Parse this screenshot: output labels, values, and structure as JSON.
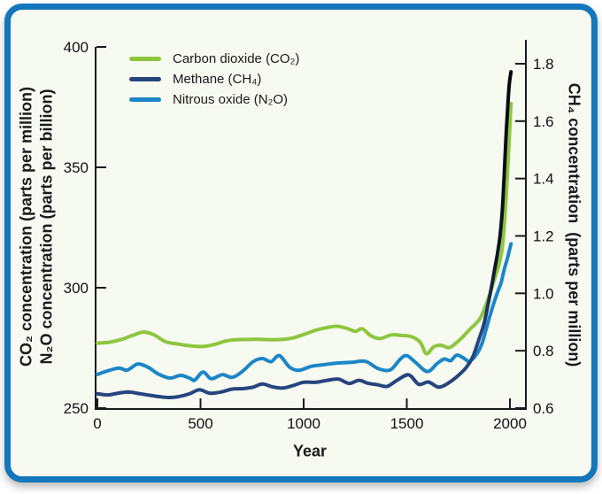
{
  "window": {
    "background_color": "#f7faf0",
    "border_color": "#1477bd"
  },
  "legend": {
    "items": [
      {
        "label": "Carbon dioxide (CO₂)",
        "series_id": "co2"
      },
      {
        "label": "Methane (CH₄)",
        "series_id": "ch4"
      },
      {
        "label": "Nitrous oxide (N₂O)",
        "series_id": "n2o"
      }
    ]
  },
  "chart_data": {
    "type": "line",
    "grid": false,
    "legend_position": "top-left",
    "x_axis": {
      "label": "Year",
      "ticks": [
        0,
        500,
        1000,
        1500,
        2000
      ],
      "range": [
        0,
        2085
      ]
    },
    "y_axis_left": {
      "labels": [
        "CO₂ concentration (parts per million)",
        "N₂O concentration (parts per billion)"
      ],
      "ticks": [
        250,
        300,
        350,
        400
      ],
      "range": [
        250,
        400
      ]
    },
    "y_axis_right": {
      "label": "CH₄ concentration  (parts per million)",
      "ticks": [
        0.6,
        0.8,
        1.0,
        1.2,
        1.4,
        1.6,
        1.8
      ],
      "range": [
        0.6,
        1.8
      ]
    },
    "series": [
      {
        "id": "co2",
        "name": "Carbon dioxide (CO₂)",
        "axis": "left",
        "unit": "ppm",
        "color": "#8dc63f",
        "points": [
          [
            0,
            277
          ],
          [
            60,
            277.4
          ],
          [
            120,
            278.6
          ],
          [
            170,
            280.2
          ],
          [
            225,
            281.6
          ],
          [
            275,
            280.4
          ],
          [
            330,
            277.6
          ],
          [
            390,
            276.6
          ],
          [
            450,
            275.9
          ],
          [
            510,
            275.6
          ],
          [
            570,
            276.5
          ],
          [
            630,
            278
          ],
          [
            700,
            278.5
          ],
          [
            780,
            278.6
          ],
          [
            860,
            278.4
          ],
          [
            940,
            279
          ],
          [
            1000,
            280.6
          ],
          [
            1060,
            282.4
          ],
          [
            1110,
            283.4
          ],
          [
            1160,
            284
          ],
          [
            1210,
            283.1
          ],
          [
            1250,
            281.9
          ],
          [
            1285,
            282.9
          ],
          [
            1325,
            280.1
          ],
          [
            1370,
            278.9
          ],
          [
            1425,
            280.4
          ],
          [
            1475,
            280.2
          ],
          [
            1525,
            279.6
          ],
          [
            1565,
            277.4
          ],
          [
            1595,
            272.6
          ],
          [
            1630,
            275.4
          ],
          [
            1665,
            276.1
          ],
          [
            1705,
            275.1
          ],
          [
            1740,
            277.1
          ],
          [
            1775,
            279.9
          ],
          [
            1805,
            282.7
          ],
          [
            1830,
            284.7
          ],
          [
            1855,
            287.2
          ],
          [
            1880,
            292
          ],
          [
            1905,
            298
          ],
          [
            1925,
            303.5
          ],
          [
            1945,
            309
          ],
          [
            1960,
            315
          ],
          [
            1970,
            323
          ],
          [
            1980,
            335
          ],
          [
            1988,
            348
          ],
          [
            1995,
            359
          ],
          [
            2005,
            376.5
          ]
        ]
      },
      {
        "id": "ch4",
        "name": "Methane (CH₄)",
        "axis": "right",
        "unit": "ppm",
        "color": "#26457e",
        "top_color": "#070707",
        "points": [
          [
            0,
            0.65
          ],
          [
            50,
            0.646
          ],
          [
            100,
            0.652
          ],
          [
            150,
            0.656
          ],
          [
            200,
            0.651
          ],
          [
            250,
            0.645
          ],
          [
            300,
            0.64
          ],
          [
            350,
            0.637
          ],
          [
            400,
            0.641
          ],
          [
            450,
            0.651
          ],
          [
            495,
            0.664
          ],
          [
            545,
            0.652
          ],
          [
            600,
            0.656
          ],
          [
            650,
            0.666
          ],
          [
            705,
            0.668
          ],
          [
            755,
            0.673
          ],
          [
            800,
            0.684
          ],
          [
            850,
            0.674
          ],
          [
            900,
            0.67
          ],
          [
            950,
            0.679
          ],
          [
            1000,
            0.69
          ],
          [
            1060,
            0.69
          ],
          [
            1115,
            0.697
          ],
          [
            1170,
            0.701
          ],
          [
            1220,
            0.686
          ],
          [
            1268,
            0.697
          ],
          [
            1310,
            0.687
          ],
          [
            1360,
            0.681
          ],
          [
            1405,
            0.676
          ],
          [
            1455,
            0.698
          ],
          [
            1510,
            0.716
          ],
          [
            1558,
            0.683
          ],
          [
            1605,
            0.691
          ],
          [
            1655,
            0.673
          ],
          [
            1705,
            0.689
          ],
          [
            1750,
            0.714
          ],
          [
            1790,
            0.743
          ],
          [
            1820,
            0.779
          ],
          [
            1850,
            0.84
          ],
          [
            1875,
            0.896
          ],
          [
            1895,
            0.965
          ],
          [
            1910,
            1.02
          ],
          [
            1925,
            1.08
          ],
          [
            1940,
            1.14
          ],
          [
            1952,
            1.2
          ],
          [
            1963,
            1.29
          ],
          [
            1972,
            1.41
          ],
          [
            1982,
            1.56
          ],
          [
            1990,
            1.66
          ],
          [
            1997,
            1.73
          ],
          [
            2005,
            1.772
          ]
        ]
      },
      {
        "id": "n2o",
        "name": "Nitrous oxide (N₂O)",
        "axis": "left",
        "unit": "ppb",
        "color": "#1b86c8",
        "points": [
          [
            0,
            264
          ],
          [
            55,
            265.6
          ],
          [
            105,
            266.6
          ],
          [
            145,
            265.8
          ],
          [
            195,
            268.3
          ],
          [
            245,
            267
          ],
          [
            295,
            264.2
          ],
          [
            350,
            262.5
          ],
          [
            405,
            263.6
          ],
          [
            450,
            262.3
          ],
          [
            472,
            261.6
          ],
          [
            512,
            265
          ],
          [
            552,
            262.2
          ],
          [
            605,
            263.9
          ],
          [
            655,
            262.8
          ],
          [
            705,
            265.4
          ],
          [
            755,
            269.3
          ],
          [
            800,
            270.6
          ],
          [
            842,
            269.3
          ],
          [
            882,
            271.8
          ],
          [
            932,
            267
          ],
          [
            977,
            265.7
          ],
          [
            1035,
            267.3
          ],
          [
            1095,
            268
          ],
          [
            1160,
            268.7
          ],
          [
            1230,
            269
          ],
          [
            1300,
            269.4
          ],
          [
            1362,
            266.4
          ],
          [
            1420,
            265.9
          ],
          [
            1468,
            270.3
          ],
          [
            1500,
            271.8
          ],
          [
            1542,
            269
          ],
          [
            1600,
            265.2
          ],
          [
            1648,
            268.6
          ],
          [
            1682,
            270.4
          ],
          [
            1712,
            269.7
          ],
          [
            1742,
            272
          ],
          [
            1777,
            270.7
          ],
          [
            1802,
            269.4
          ],
          [
            1832,
            271.6
          ],
          [
            1862,
            276.2
          ],
          [
            1882,
            282
          ],
          [
            1902,
            288
          ],
          [
            1922,
            293.6
          ],
          [
            1942,
            298.6
          ],
          [
            1957,
            302
          ],
          [
            1972,
            307.5
          ],
          [
            1987,
            312
          ],
          [
            2005,
            318.2
          ]
        ]
      }
    ]
  }
}
